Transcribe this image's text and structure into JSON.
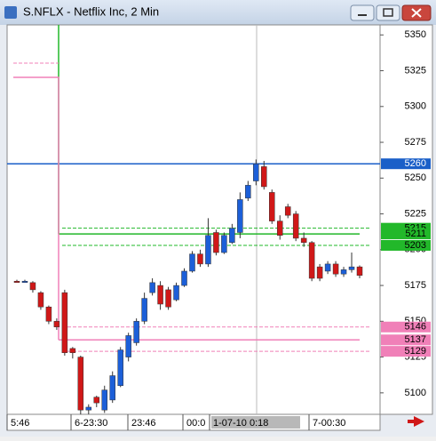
{
  "window_title": "S.NFLX - Netflix Inc, 2 Min",
  "chart_data": {
    "type": "candlestick",
    "open": [
      5178,
      5178,
      5177,
      5170,
      5160,
      5150,
      5170,
      5131,
      5125,
      5088,
      5097,
      5088,
      5095,
      5105,
      5125,
      5135,
      5150,
      5170,
      5175,
      5172,
      5165,
      5175,
      5185,
      5197,
      5190,
      5212,
      5198,
      5205,
      5212,
      5236,
      5248,
      5258,
      5240,
      5220,
      5230,
      5225,
      5208,
      5205,
      5188,
      5185,
      5190,
      5183,
      5186,
      5188
    ],
    "high": [
      5179,
      5179,
      5178,
      5171,
      5161,
      5152,
      5172,
      5132,
      5126,
      5092,
      5098,
      5105,
      5115,
      5132,
      5142,
      5152,
      5170,
      5180,
      5178,
      5174,
      5177,
      5187,
      5199,
      5200,
      5222,
      5214,
      5212,
      5218,
      5240,
      5248,
      5263,
      5262,
      5242,
      5224,
      5232,
      5227,
      5212,
      5206,
      5190,
      5192,
      5192,
      5188,
      5198,
      5189
    ],
    "low": [
      5177,
      5177,
      5170,
      5158,
      5148,
      5144,
      5126,
      5124,
      5085,
      5085,
      5090,
      5086,
      5093,
      5104,
      5122,
      5133,
      5148,
      5168,
      5158,
      5158,
      5164,
      5174,
      5184,
      5188,
      5188,
      5196,
      5197,
      5204,
      5208,
      5234,
      5245,
      5242,
      5218,
      5207,
      5222,
      5206,
      5202,
      5178,
      5178,
      5183,
      5181,
      5181,
      5184,
      5180
    ],
    "close": [
      5177.5,
      5178,
      5172,
      5160,
      5150,
      5146,
      5128,
      5128,
      5088,
      5090,
      5093,
      5102,
      5112,
      5130,
      5140,
      5150,
      5166,
      5177,
      5162,
      5160,
      5175,
      5185,
      5197,
      5190,
      5210,
      5198,
      5210,
      5215,
      5235,
      5245,
      5260,
      5244,
      5220,
      5210,
      5224,
      5208,
      5205,
      5180,
      5180,
      5190,
      5183,
      5186,
      5188,
      5182
    ],
    "up_color": "#1c5fd8",
    "down_color": "#d01818",
    "ylim": [
      5085,
      5357
    ],
    "yticks": [
      5100,
      5125,
      5150,
      5175,
      5200,
      5225,
      5250,
      5275,
      5300,
      5325,
      5350
    ],
    "levels": [
      {
        "value": 5260,
        "color": "#1a5fc8",
        "style": "solid"
      },
      {
        "value": 5215,
        "color": "#22b82a",
        "style": "dashed"
      },
      {
        "value": 5211,
        "color": "#22b82a",
        "style": "solid"
      },
      {
        "value": 5203,
        "color": "#22b82a",
        "style": "dashed"
      },
      {
        "value": 5146,
        "color": "#f080b8",
        "style": "dashed"
      },
      {
        "value": 5137,
        "color": "#f080b8",
        "style": "solid"
      },
      {
        "value": 5129,
        "color": "#f080b8",
        "style": "dashed"
      }
    ],
    "x_labels": [
      "5:46",
      "6-23:30",
      "23:46",
      "00:0",
      "1-07-10  0:18",
      "7-00:30"
    ]
  }
}
